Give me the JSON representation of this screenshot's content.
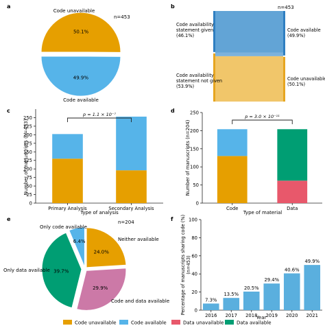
{
  "colors": {
    "code_unavailable": "#E69F00",
    "code_available": "#56B4E9",
    "data_unavailable": "#E8586B",
    "data_available": "#009E73",
    "sankey_blue": "#5A9FD4",
    "sankey_orange": "#EFC05A",
    "pie_e_only_code": "#56B4E9",
    "pie_e_neither": "#E69F00",
    "pie_e_both": "#CC79A7",
    "pie_e_only_data": "#009E73",
    "bar_f": "#5AAFDE"
  },
  "legend": [
    {
      "label": "Code unavailable",
      "color": "#E69F00"
    },
    {
      "label": "Code available",
      "color": "#56B4E9"
    },
    {
      "label": "Data unavailable",
      "color": "#E8586B"
    },
    {
      "label": "Data available",
      "color": "#009E73"
    }
  ],
  "chart_data": [
    {
      "panel": "a",
      "type": "pie",
      "n_label": "n=453",
      "slices": [
        {
          "label": "Code unavailable",
          "value": 50.1,
          "text": "50.1%"
        },
        {
          "label": "Code available",
          "value": 49.9,
          "text": "49.9%"
        }
      ]
    },
    {
      "panel": "b",
      "type": "sankey",
      "n_label": "n=453",
      "left": [
        {
          "label1": "Code availability",
          "label2": "statement given",
          "label3": "(46.1%)",
          "value": 46.1
        },
        {
          "label1": "Code availability",
          "label2": "statement not given",
          "label3": "(53.9%)",
          "value": 53.9
        }
      ],
      "right": [
        {
          "label1": "Code available",
          "label2": "(49.9%)",
          "value": 49.9
        },
        {
          "label1": "Code unavailable",
          "label2": "(50.1%)",
          "value": 50.1
        }
      ]
    },
    {
      "panel": "c",
      "type": "bar",
      "stacked": true,
      "categories": [
        "Primary Analysis",
        "Secondary Analysis"
      ],
      "series": [
        {
          "name": "Code unavailable",
          "values": [
            130,
            96
          ]
        },
        {
          "name": "Code available",
          "values": [
            72,
            157
          ]
        }
      ],
      "xlabel": "Type of analysis",
      "ylabel": "Number of manuscripts (n=453)",
      "ylim": [
        0,
        275
      ],
      "yticks": [
        "0",
        "25",
        "50",
        "75",
        "100",
        "125",
        "150",
        "175",
        "200",
        "225",
        "250"
      ],
      "p_label": "p = 1.1 × 10⁻⁷"
    },
    {
      "panel": "d",
      "type": "bar",
      "stacked": true,
      "categories": [
        "Code",
        "Data"
      ],
      "series": [
        {
          "name": "Unavailable",
          "values": [
            130,
            62
          ]
        },
        {
          "name": "Available",
          "values": [
            74,
            142
          ]
        }
      ],
      "xlabel": "Type of material",
      "ylabel": "Number of manuscripts (n=204)",
      "ylim": [
        0,
        250
      ],
      "yticks": [
        "0",
        "50",
        "100",
        "150",
        "200",
        "250"
      ],
      "p_label": "p = 3.0 × 10⁻¹¹"
    },
    {
      "panel": "e",
      "type": "pie",
      "n_label": "n=204",
      "slices": [
        {
          "label": "Only code available",
          "value": 6.4,
          "text": "6.4%"
        },
        {
          "label": "Neither available",
          "value": 24.0,
          "text": "24.0%"
        },
        {
          "label": "Code and data available",
          "value": 29.9,
          "text": "29.9%"
        },
        {
          "label": "Only data available",
          "value": 39.7,
          "text": "39.7%"
        }
      ]
    },
    {
      "panel": "f",
      "type": "bar",
      "categories": [
        "2016",
        "2017",
        "2018",
        "2019",
        "2020",
        "2021"
      ],
      "values": [
        7.3,
        13.5,
        20.5,
        29.4,
        40.6,
        49.9
      ],
      "value_labels": [
        "7.3%",
        "13.5%",
        "20.5%",
        "29.4%",
        "40.6%",
        "49.9%"
      ],
      "xlabel": "Year",
      "ylabel1": "Percentage of manuscripts sharing code (%)",
      "ylabel2": "(n=453)",
      "ylim": [
        0,
        100
      ],
      "yticks": [
        "0",
        "20",
        "40",
        "60",
        "80",
        "100"
      ]
    }
  ]
}
